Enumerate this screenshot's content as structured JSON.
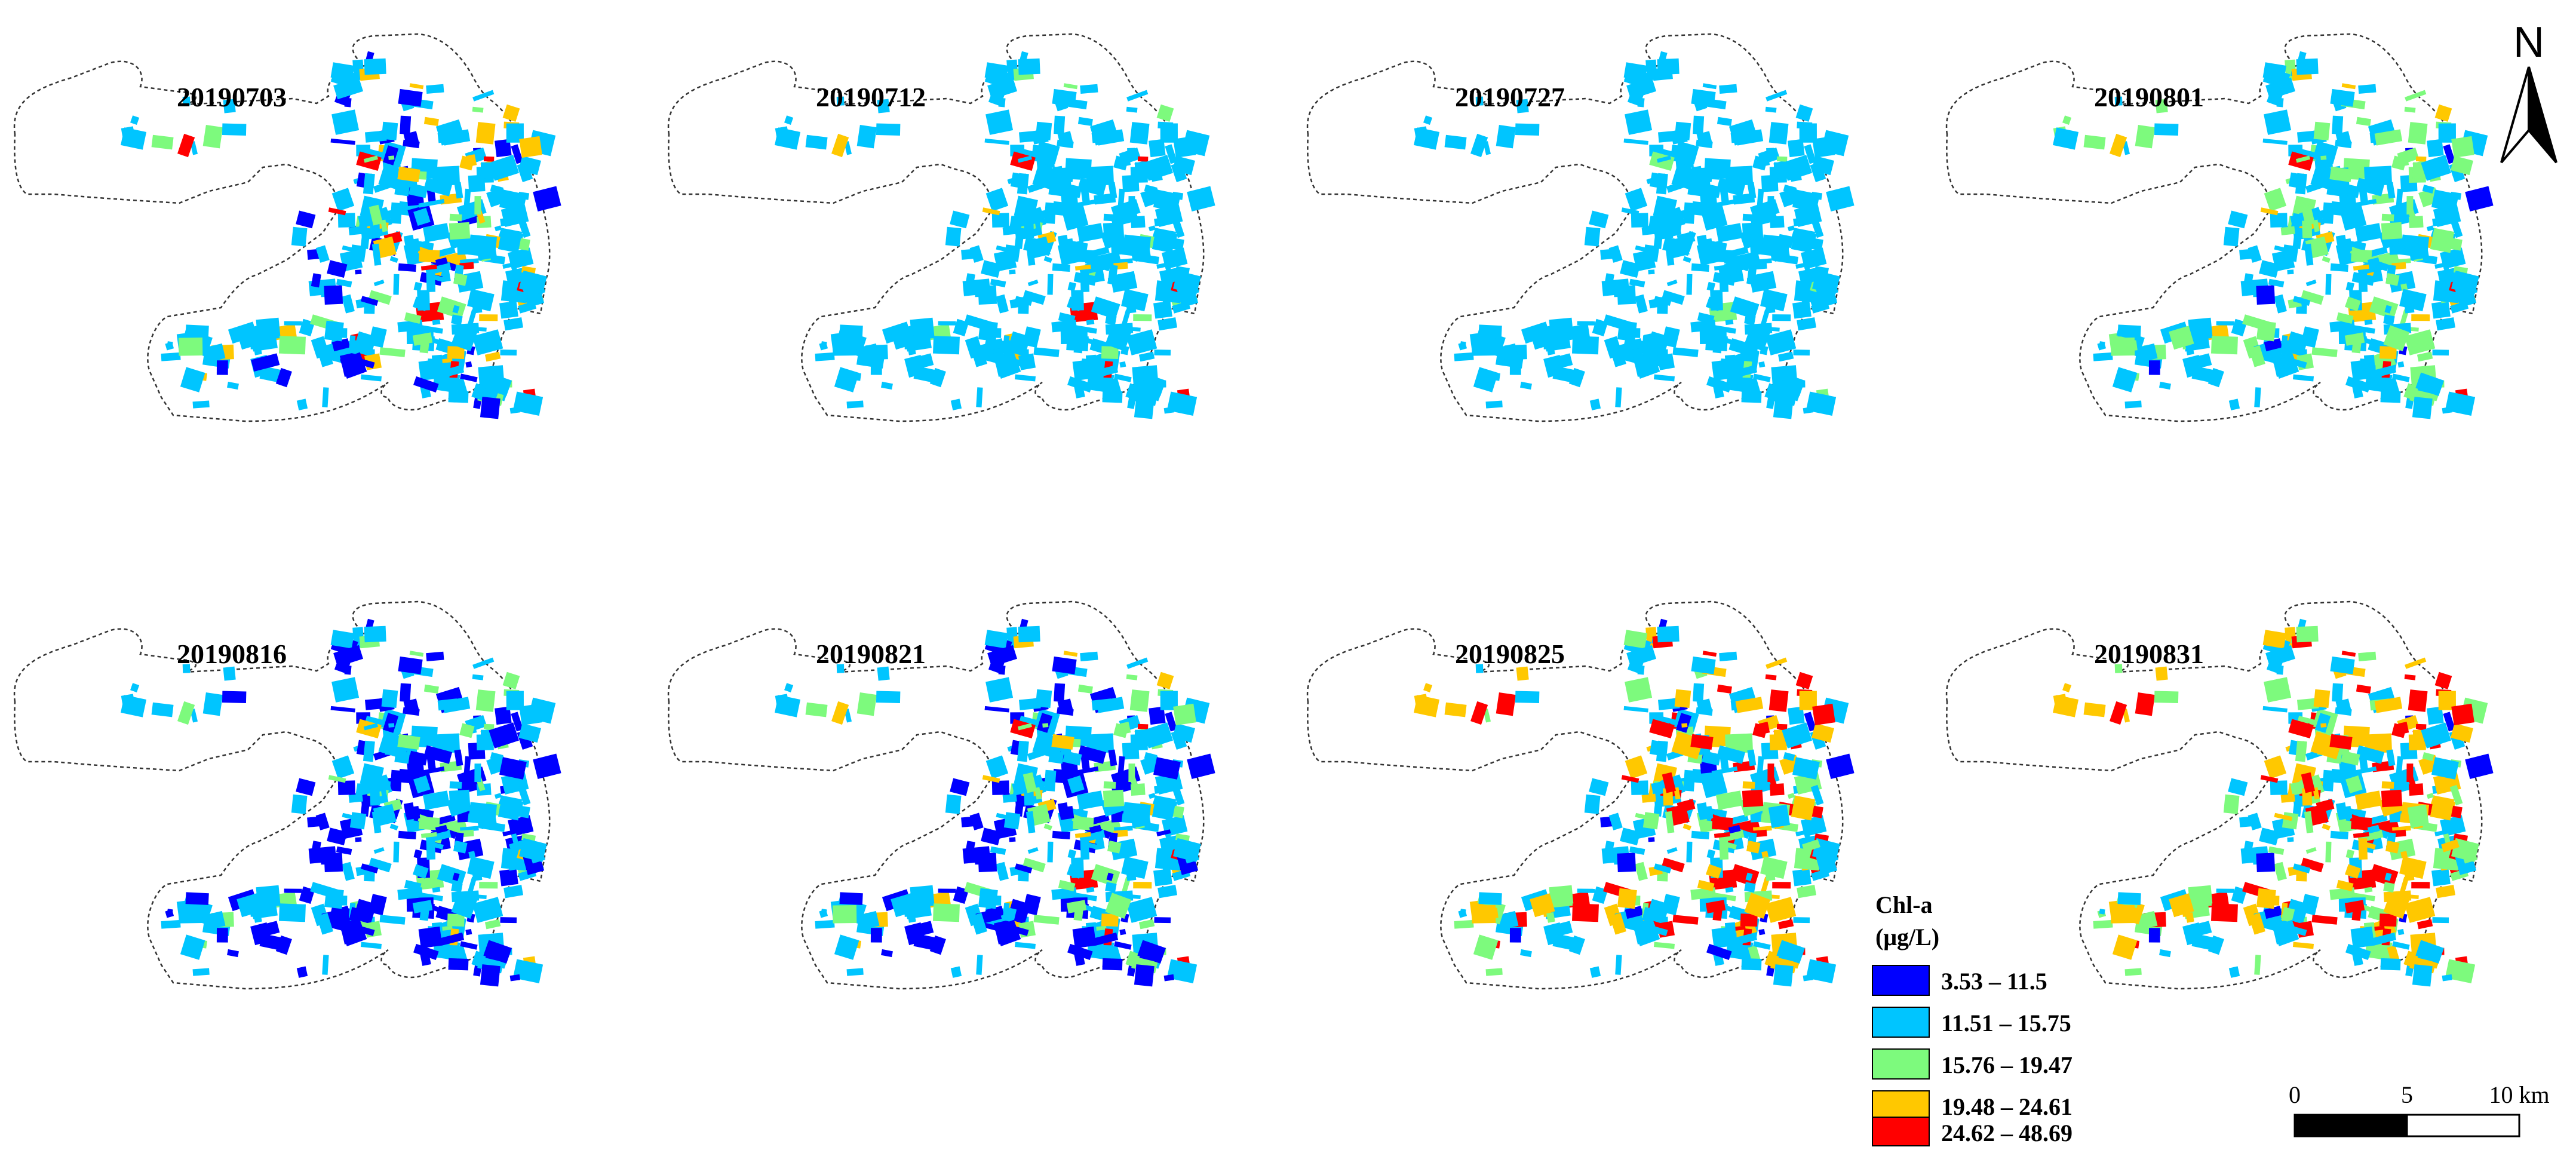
{
  "panels": [
    {
      "date": "20190703",
      "mix": [
        0.14,
        0.62,
        0.11,
        0.08,
        0.05
      ]
    },
    {
      "date": "20190712",
      "mix": [
        0.0,
        0.93,
        0.02,
        0.02,
        0.03
      ]
    },
    {
      "date": "20190727",
      "mix": [
        0.0,
        0.97,
        0.02,
        0.01,
        0.0
      ]
    },
    {
      "date": "20190801",
      "mix": [
        0.02,
        0.63,
        0.28,
        0.05,
        0.02
      ]
    },
    {
      "date": "20190816",
      "mix": [
        0.38,
        0.5,
        0.1,
        0.01,
        0.01
      ]
    },
    {
      "date": "20190821",
      "mix": [
        0.3,
        0.45,
        0.17,
        0.05,
        0.03
      ]
    },
    {
      "date": "20190825",
      "mix": [
        0.05,
        0.45,
        0.14,
        0.16,
        0.2
      ]
    },
    {
      "date": "20190831",
      "mix": [
        0.02,
        0.32,
        0.2,
        0.26,
        0.2
      ]
    }
  ],
  "legend": {
    "title_line1": "Chl-a",
    "title_line2": "(μg/L)",
    "classes": [
      {
        "label": "3.53 – 11.5",
        "color": "#0000ff"
      },
      {
        "label": "11.51 – 15.75",
        "color": "#00c5ff"
      },
      {
        "label": "15.76 – 19.47",
        "color": "#7dfa7d"
      },
      {
        "label": "19.48 – 24.61",
        "color": "#ffc800"
      },
      {
        "label": "24.62 – 48.69",
        "color": "#ff0000"
      }
    ]
  },
  "scale_bar": {
    "labels": [
      "0",
      "5",
      "10 km"
    ]
  },
  "north_arrow": {
    "label": "N"
  }
}
